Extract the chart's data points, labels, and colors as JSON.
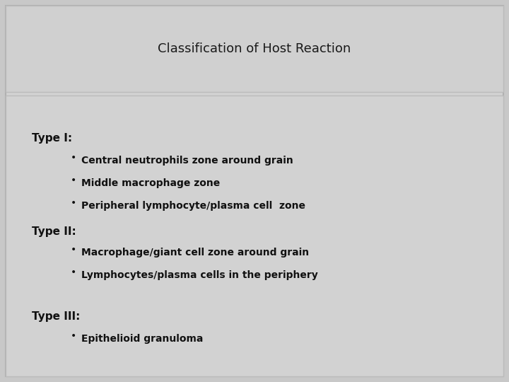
{
  "title": "Classification of Host Reaction",
  "title_fontsize": 13,
  "title_color": "#1a1a1a",
  "outer_bg": "#c8c8c8",
  "title_box_color": "#d0d0d0",
  "content_box_color": "#d0d0d0",
  "sections": [
    {
      "heading": "Type I:",
      "bullets": [
        "Central neutrophils zone around grain",
        "Middle macrophage zone",
        "Peripheral lymphocyte/plasma cell  zone"
      ]
    },
    {
      "heading": "Type II:",
      "bullets": [
        "Macrophage/giant cell zone around grain",
        "Lymphocytes/plasma cells in the periphery"
      ]
    },
    {
      "heading": "Type III:",
      "bullets": [
        "Epithelioid granuloma"
      ]
    }
  ],
  "heading_fontsize": 11,
  "bullet_fontsize": 10,
  "text_color": "#111111"
}
